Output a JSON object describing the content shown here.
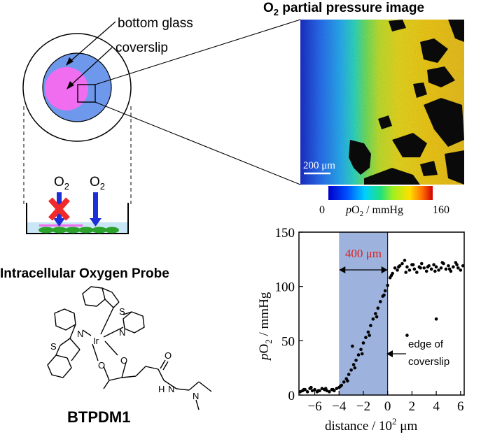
{
  "dish_labels": {
    "bottom_glass": "bottom glass",
    "coverslip": "coverslip"
  },
  "side_view": {
    "o2_left_base": "O",
    "o2_left_sub": "2",
    "o2_right_base": "O",
    "o2_right_sub": "2"
  },
  "image_panel": {
    "title_base": "O",
    "title_sub": "2",
    "title_rest": " partial pressure image",
    "scale_bar": "200 μm",
    "colorbar_min": "0",
    "colorbar_max": "160",
    "colorbar_label_italic": "p",
    "colorbar_label_rest1": "O",
    "colorbar_label_sub": "2",
    "colorbar_label_rest2": " / mmHg"
  },
  "probe": {
    "heading": "Intracellular Oxygen Probe",
    "name": "BTPDM1",
    "atoms": {
      "S1": "S",
      "S2": "S",
      "N1": "N",
      "N2": "N",
      "Ir": "Ir",
      "O1": "O",
      "O2": "O",
      "O3": "O",
      "N3": "N",
      "N4": "N",
      "H": "H"
    }
  },
  "chart_data": {
    "type": "scatter",
    "title": "",
    "xlabel_main": "distance / 10",
    "xlabel_sup": "2",
    "xlabel_unit": " μm",
    "ylabel_italic": "p",
    "ylabel_rest1": "O",
    "ylabel_sub": "2",
    "ylabel_rest2": " / mmHg",
    "xlim": [
      -7.3,
      6.3
    ],
    "ylim": [
      0,
      150
    ],
    "x_ticks": [
      -6,
      -4,
      -2,
      0,
      2,
      4,
      6
    ],
    "x_tick_labels": [
      "−6",
      "−4",
      "−2",
      "0",
      "2",
      "4",
      "6"
    ],
    "y_ticks": [
      0,
      50,
      100,
      150
    ],
    "y_tick_labels": [
      "0",
      "50",
      "100",
      "150"
    ],
    "shaded_region": [
      -4,
      0
    ],
    "shaded_color": "#9db2dc",
    "span_label": "400 μm",
    "span_color": "#e02020",
    "annotation_line1": "edge of",
    "annotation_line2": "coverslip",
    "series": [
      {
        "x": [
          -7.2,
          -7.0,
          -6.8,
          -6.6,
          -6.4,
          -6.2,
          -6.0,
          -5.8,
          -5.6,
          -5.4,
          -5.2,
          -5.0,
          -4.8,
          -4.6,
          -4.4,
          -4.2,
          -4.0,
          -3.8,
          -3.6,
          -3.4,
          -3.2,
          -3.0,
          -2.8,
          -2.6,
          -2.4,
          -2.2,
          -2.0,
          -1.8,
          -1.6,
          -1.4,
          -1.2,
          -1.0,
          -0.8,
          -0.6,
          -0.4,
          -0.2,
          0.0,
          0.2,
          0.4,
          0.6,
          0.8,
          1.0,
          1.2,
          1.4,
          1.6,
          1.8,
          2.0,
          2.2,
          2.4,
          2.6,
          2.8,
          3.0,
          3.2,
          3.4,
          3.6,
          3.8,
          4.0,
          4.2,
          4.4,
          4.6,
          4.8,
          5.0,
          5.2,
          5.4,
          5.6,
          5.8,
          6.0,
          6.2,
          -6.9,
          -6.3,
          -5.7,
          -5.1,
          -4.5,
          -3.9,
          -3.3,
          -2.7,
          -2.1,
          -1.5,
          -0.9,
          -0.3,
          0.3,
          0.9,
          1.5,
          2.1,
          2.7,
          3.3,
          3.9,
          4.5,
          5.1,
          5.7,
          -2.9,
          4.0,
          1.6
        ],
        "y": [
          3,
          4,
          5,
          3,
          6,
          4,
          5,
          3,
          4,
          6,
          5,
          4,
          3,
          5,
          4,
          6,
          7,
          9,
          12,
          15,
          19,
          23,
          28,
          32,
          37,
          42,
          48,
          53,
          58,
          64,
          70,
          75,
          80,
          86,
          91,
          96,
          101,
          108,
          112,
          117,
          115,
          119,
          121,
          124,
          118,
          115,
          120,
          116,
          113,
          118,
          121,
          117,
          114,
          119,
          116,
          120,
          118,
          115,
          117,
          121,
          116,
          119,
          114,
          118,
          122,
          117,
          115,
          119,
          5,
          7,
          4,
          6,
          5,
          8,
          13,
          25,
          38,
          55,
          72,
          92,
          110,
          118,
          113,
          120,
          117,
          118,
          114,
          122,
          116,
          120,
          45,
          70,
          55
        ]
      }
    ]
  },
  "colors": {
    "dish_blue": "#6e98ec",
    "cell_magenta": "#f06df0",
    "o2_arrow_blue": "#1c2fd8",
    "cross_red": "#ee2a2a",
    "cell_green": "#2ca12c",
    "medium_blue": "#c8e6f5"
  }
}
